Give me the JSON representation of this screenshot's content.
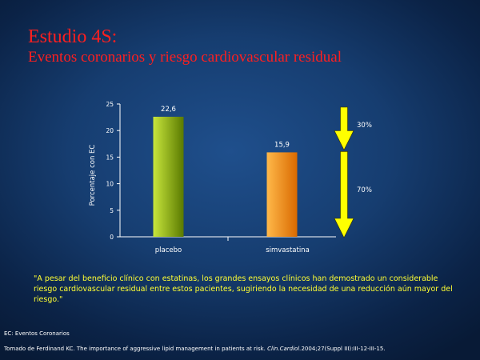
{
  "header": {
    "title": "Estudio 4S:",
    "subtitle": "Eventos coronarios y riesgo cardiovascular residual"
  },
  "chart_data": {
    "type": "bar",
    "categories": [
      "placebo",
      "simvastatina"
    ],
    "values": [
      22.6,
      15.9
    ],
    "value_labels": [
      "22,6",
      "15,9"
    ],
    "ylabel": "Porcentaje con EC",
    "ylim": [
      0,
      25
    ],
    "yticks": [
      0,
      5,
      10,
      15,
      20,
      25
    ],
    "grid": false,
    "bar_colors": [
      [
        "#c8e63c",
        "#5a7a00"
      ],
      [
        "#ffb84a",
        "#d96a00"
      ]
    ],
    "annotations": [
      "30%",
      "70%"
    ],
    "arrow_color": "#ffff00"
  },
  "quote": "\"A pesar del beneficio clínico con estatinas, los grandes ensayos clínicos han demostrado un considerable riesgo cardiovascular residual entre estos pacientes, sugiriendo la necesidad de una reducción aún mayor del riesgo.\"",
  "footnote": "EC: Eventos Coronarios",
  "source": {
    "text": "Tomado de Ferdinand KC. The importance of aggressive lipid management in patients at risk. ",
    "journal": "Clin.Cardiol.",
    "citation": "2004;27(Suppl III):III-12-III-15."
  },
  "colors": {
    "background": "#163d70",
    "title": "#ff1f1f",
    "quote": "#ffff33"
  }
}
